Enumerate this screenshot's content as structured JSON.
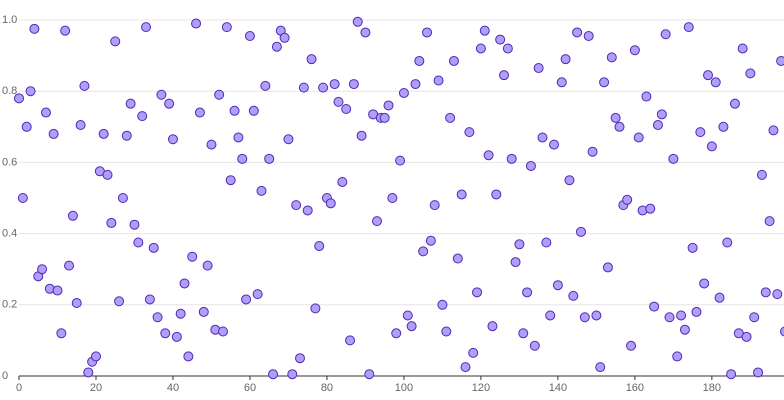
{
  "chart_data": {
    "type": "scatter",
    "x": [
      0,
      1,
      2,
      3,
      4,
      5,
      6,
      7,
      8,
      9,
      10,
      11,
      12,
      13,
      14,
      15,
      16,
      17,
      18,
      19,
      20,
      21,
      22,
      23,
      24,
      25,
      26,
      27,
      28,
      29,
      30,
      31,
      32,
      33,
      34,
      35,
      36,
      37,
      38,
      39,
      40,
      41,
      42,
      43,
      44,
      45,
      46,
      47,
      48,
      49,
      50,
      51,
      52,
      53,
      54,
      55,
      56,
      57,
      58,
      59,
      60,
      61,
      62,
      63,
      64,
      65,
      66,
      67,
      68,
      69,
      70,
      71,
      72,
      73,
      74,
      75,
      76,
      77,
      78,
      79,
      80,
      81,
      82,
      83,
      84,
      85,
      86,
      87,
      88,
      89,
      90,
      91,
      92,
      93,
      94,
      95,
      96,
      97,
      98,
      99,
      100,
      101,
      102,
      103,
      104,
      105,
      106,
      107,
      108,
      109,
      110,
      111,
      112,
      113,
      114,
      115,
      116,
      117,
      118,
      119,
      120,
      121,
      122,
      123,
      124,
      125,
      126,
      127,
      128,
      129,
      130,
      131,
      132,
      133,
      134,
      135,
      136,
      137,
      138,
      139,
      140,
      141,
      142,
      143,
      144,
      145,
      146,
      147,
      148,
      149,
      150,
      151,
      152,
      153,
      154,
      155,
      156,
      157,
      158,
      159,
      160,
      161,
      162,
      163,
      164,
      165,
      166,
      167,
      168,
      169,
      170,
      171,
      172,
      173,
      174,
      175,
      176,
      177,
      178,
      179,
      180,
      181,
      182,
      183,
      184,
      185,
      186,
      187,
      188,
      189,
      190,
      191,
      192,
      193,
      194,
      195,
      196,
      197,
      198,
      199
    ],
    "values": [
      0.78,
      0.5,
      0.7,
      0.8,
      0.975,
      0.28,
      0.3,
      0.74,
      0.245,
      0.68,
      0.24,
      0.12,
      0.97,
      0.31,
      0.45,
      0.205,
      0.705,
      0.815,
      0.01,
      0.04,
      0.055,
      0.575,
      0.68,
      0.565,
      0.43,
      0.94,
      0.21,
      0.5,
      0.675,
      0.765,
      0.425,
      0.375,
      0.73,
      0.98,
      0.215,
      0.36,
      0.165,
      0.79,
      0.12,
      0.765,
      0.665,
      0.11,
      0.175,
      0.26,
      0.055,
      0.335,
      0.99,
      0.74,
      0.18,
      0.31,
      0.65,
      0.13,
      0.79,
      0.125,
      0.98,
      0.55,
      0.745,
      0.67,
      0.61,
      0.215,
      0.955,
      0.745,
      0.23,
      0.52,
      0.815,
      0.61,
      0.005,
      0.925,
      0.97,
      0.95,
      0.665,
      0.005,
      0.48,
      0.05,
      0.81,
      0.465,
      0.89,
      0.19,
      0.365,
      0.81,
      0.5,
      0.485,
      0.82,
      0.77,
      0.545,
      0.75,
      0.1,
      0.82,
      0.995,
      0.675,
      0.965,
      0.005,
      0.735,
      0.435,
      0.725,
      0.725,
      0.76,
      0.5,
      0.12,
      0.605,
      0.795,
      0.17,
      0.14,
      0.82,
      0.885,
      0.35,
      0.965,
      0.38,
      0.48,
      0.83,
      0.2,
      0.125,
      0.725,
      0.885,
      0.33,
      0.51,
      0.025,
      0.685,
      0.065,
      0.235,
      0.92,
      0.97,
      0.62,
      0.14,
      0.51,
      0.945,
      0.845,
      0.92,
      0.61,
      0.32,
      0.37,
      0.12,
      0.235,
      0.59,
      0.085,
      0.865,
      0.67,
      0.375,
      0.17,
      0.65,
      0.255,
      0.825,
      0.89,
      0.55,
      0.225,
      0.965,
      0.405,
      0.165,
      0.955,
      0.63,
      0.17,
      0.025,
      0.825,
      0.305,
      0.895,
      0.725,
      0.7,
      0.48,
      0.495,
      0.085,
      0.915,
      0.67,
      0.465,
      0.785,
      0.47,
      0.195,
      0.705,
      0.735,
      0.96,
      0.165,
      0.61,
      0.055,
      0.17,
      0.13,
      0.98,
      0.36,
      0.18,
      0.685,
      0.26,
      0.845,
      0.645,
      0.825,
      0.22,
      0.7,
      0.375,
      0.005,
      0.765,
      0.12,
      0.92,
      0.11,
      0.85,
      0.165,
      0.01,
      0.565,
      0.235,
      0.435,
      0.69,
      0.23,
      0.885,
      0.125
    ],
    "color": "#b39dfa",
    "edgecolor": "#4c2bb3",
    "xlim": [
      0,
      199
    ],
    "xticks": [
      0,
      20,
      40,
      60,
      80,
      100,
      120,
      140,
      160,
      180
    ],
    "ylim": [
      0,
      1
    ],
    "yticks": [
      0,
      0.2,
      0.4,
      0.6,
      0.8,
      {
        "value": 1,
        "label": "1.0"
      }
    ],
    "grid": true
  }
}
